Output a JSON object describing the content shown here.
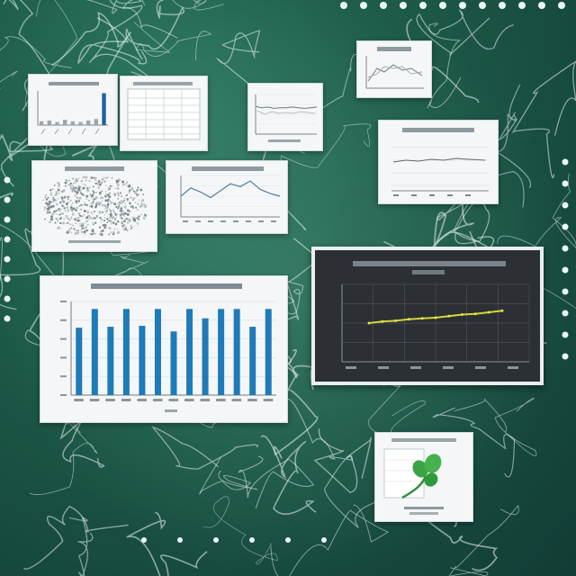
{
  "scene": {
    "description_colors": {
      "background_green": "#1f5e4c",
      "line_white": "#e8f4f4",
      "bar_blue": "#1f7ab8",
      "dark_plot_bg": "#2c2f33",
      "yellow_line": "#d6d63a"
    }
  },
  "big_bar_chart": {
    "values": [
      72,
      92,
      73,
      92,
      74,
      92,
      68,
      92,
      82,
      92,
      92,
      73,
      92
    ],
    "ylim": [
      0,
      100
    ]
  },
  "dark_line_chart": {
    "values": [
      50,
      52,
      53,
      55,
      56,
      57,
      59,
      61,
      62,
      64,
      66
    ]
  },
  "small_bar_chart": {
    "values": [
      5,
      6,
      4,
      7,
      5,
      4,
      6,
      8,
      42
    ]
  },
  "wavy_line_chart": {
    "values": [
      30,
      42,
      36,
      28,
      38,
      48,
      44,
      52,
      40,
      34,
      30
    ]
  },
  "flat_line_chart": {
    "values": [
      42,
      40,
      41,
      39,
      40,
      40,
      41,
      40,
      39,
      40,
      41
    ]
  }
}
